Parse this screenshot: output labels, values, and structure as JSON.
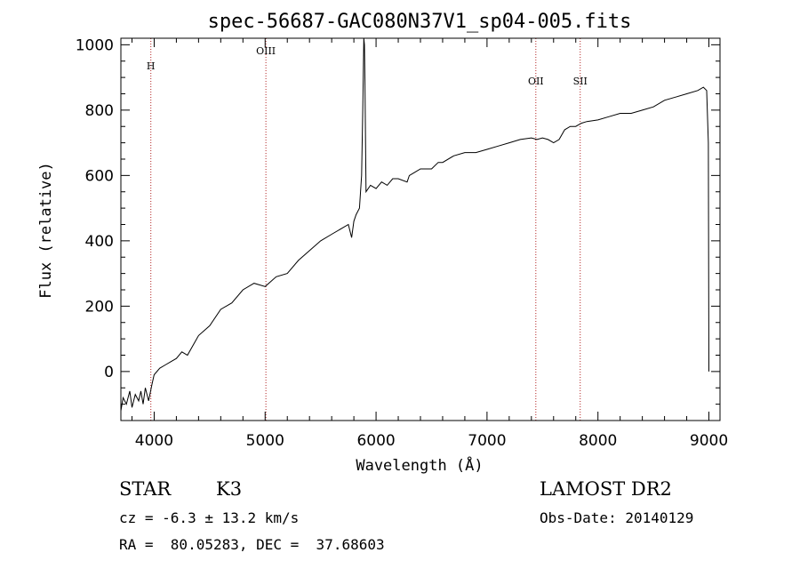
{
  "chart_data": {
    "type": "line",
    "title": "spec-56687-GAC080N37V1_sp04-005.fits",
    "xlabel": "Wavelength (Å)",
    "ylabel": "Flux (relative)",
    "xlim": [
      3700,
      9100
    ],
    "ylim": [
      -150,
      1020
    ],
    "x_ticks": [
      4000,
      5000,
      6000,
      7000,
      8000,
      9000
    ],
    "y_ticks": [
      0,
      200,
      400,
      600,
      800,
      1000
    ],
    "grid": false,
    "line_markers": [
      {
        "label": "H",
        "x": 3970
      },
      {
        "label": "OIII",
        "x": 5007
      },
      {
        "label": "OII",
        "x": 7440
      },
      {
        "label": "SII",
        "x": 7840
      }
    ],
    "series": [
      {
        "x": [
          3700,
          3720,
          3750,
          3780,
          3800,
          3830,
          3860,
          3880,
          3900,
          3920,
          3950,
          3980,
          4000,
          4050,
          4100,
          4150,
          4200,
          4250,
          4300,
          4400,
          4500,
          4600,
          4700,
          4800,
          4900,
          5000,
          5100,
          5200,
          5300,
          5400,
          5500,
          5600,
          5700,
          5750,
          5780,
          5800,
          5820,
          5850,
          5870,
          5880,
          5890,
          5895,
          5900,
          5910,
          5950,
          6000,
          6050,
          6100,
          6150,
          6200,
          6280,
          6300,
          6350,
          6400,
          6500,
          6560,
          6600,
          6700,
          6800,
          6900,
          7000,
          7100,
          7200,
          7300,
          7400,
          7450,
          7500,
          7550,
          7600,
          7650,
          7700,
          7750,
          7800,
          7850,
          7900,
          8000,
          8100,
          8200,
          8300,
          8400,
          8500,
          8600,
          8700,
          8800,
          8900,
          8950,
          8980,
          8995,
          9000
        ],
        "values": [
          -120,
          -80,
          -100,
          -60,
          -110,
          -70,
          -90,
          -60,
          -100,
          -50,
          -90,
          -40,
          -10,
          10,
          20,
          30,
          40,
          60,
          50,
          110,
          140,
          190,
          210,
          250,
          270,
          260,
          290,
          300,
          340,
          370,
          400,
          420,
          440,
          450,
          410,
          460,
          480,
          500,
          600,
          800,
          1020,
          1000,
          880,
          550,
          570,
          560,
          580,
          570,
          590,
          590,
          580,
          600,
          610,
          620,
          620,
          640,
          640,
          660,
          670,
          670,
          680,
          690,
          700,
          710,
          715,
          710,
          715,
          710,
          700,
          710,
          740,
          750,
          750,
          760,
          765,
          770,
          780,
          790,
          790,
          800,
          810,
          830,
          840,
          850,
          860,
          870,
          860,
          700,
          0
        ]
      }
    ]
  },
  "info": {
    "object_type": "STAR",
    "subclass": "K3",
    "survey": "LAMOST DR2",
    "cz": "cz = -6.3 ± 13.2 km/s",
    "obs_date": "Obs-Date: 20140129",
    "coords": "RA =  80.05283, DEC =  37.68603"
  },
  "colors": {
    "spectrum": "#000000",
    "line_marker": "#b22222",
    "axes": "#000000"
  }
}
